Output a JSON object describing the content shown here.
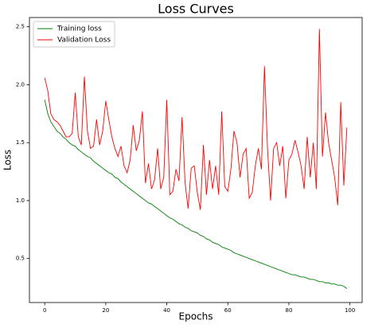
{
  "chart_data": {
    "type": "line",
    "title": "Loss Curves",
    "xlabel": "Epochs",
    "ylabel": "Loss",
    "x": [
      0,
      1,
      2,
      3,
      4,
      5,
      6,
      7,
      8,
      9,
      10,
      11,
      12,
      13,
      14,
      15,
      16,
      17,
      18,
      19,
      20,
      21,
      22,
      23,
      24,
      25,
      26,
      27,
      28,
      29,
      30,
      31,
      32,
      33,
      34,
      35,
      36,
      37,
      38,
      39,
      40,
      41,
      42,
      43,
      44,
      45,
      46,
      47,
      48,
      49,
      50,
      51,
      52,
      53,
      54,
      55,
      56,
      57,
      58,
      59,
      60,
      61,
      62,
      63,
      64,
      65,
      66,
      67,
      68,
      69,
      70,
      71,
      72,
      73,
      74,
      75,
      76,
      77,
      78,
      79,
      80,
      81,
      82,
      83,
      84,
      85,
      86,
      87,
      88,
      89,
      90,
      91,
      92,
      93,
      94,
      95,
      96,
      97,
      98,
      99
    ],
    "series": [
      {
        "name": "Training loss",
        "color": "#008000",
        "values": [
          1.87,
          1.75,
          1.68,
          1.64,
          1.6,
          1.58,
          1.55,
          1.53,
          1.5,
          1.48,
          1.47,
          1.44,
          1.42,
          1.4,
          1.38,
          1.37,
          1.34,
          1.32,
          1.3,
          1.28,
          1.26,
          1.24,
          1.23,
          1.2,
          1.19,
          1.16,
          1.14,
          1.12,
          1.1,
          1.08,
          1.06,
          1.04,
          1.02,
          1.0,
          0.98,
          0.97,
          0.95,
          0.93,
          0.91,
          0.89,
          0.87,
          0.85,
          0.84,
          0.82,
          0.8,
          0.79,
          0.77,
          0.76,
          0.74,
          0.73,
          0.72,
          0.7,
          0.69,
          0.67,
          0.66,
          0.64,
          0.63,
          0.62,
          0.6,
          0.59,
          0.58,
          0.57,
          0.55,
          0.54,
          0.53,
          0.52,
          0.51,
          0.5,
          0.49,
          0.48,
          0.47,
          0.46,
          0.45,
          0.44,
          0.43,
          0.42,
          0.41,
          0.4,
          0.39,
          0.38,
          0.37,
          0.36,
          0.36,
          0.35,
          0.34,
          0.34,
          0.33,
          0.32,
          0.32,
          0.31,
          0.3,
          0.3,
          0.29,
          0.29,
          0.28,
          0.28,
          0.27,
          0.27,
          0.26,
          0.24
        ]
      },
      {
        "name": "Validation Loss",
        "color": "#ff0000",
        "values": [
          2.06,
          1.95,
          1.75,
          1.7,
          1.68,
          1.65,
          1.6,
          1.55,
          1.55,
          1.58,
          1.93,
          1.55,
          1.48,
          2.07,
          1.6,
          1.45,
          1.47,
          1.7,
          1.48,
          1.6,
          1.86,
          1.7,
          1.55,
          1.45,
          1.38,
          1.47,
          1.3,
          1.24,
          1.35,
          1.65,
          1.43,
          1.52,
          1.77,
          1.15,
          1.32,
          1.1,
          1.18,
          1.45,
          1.1,
          1.2,
          1.87,
          1.05,
          1.08,
          1.27,
          1.17,
          1.72,
          1.15,
          0.93,
          1.28,
          1.3,
          1.07,
          0.92,
          1.48,
          1.05,
          1.35,
          1.1,
          1.3,
          1.05,
          1.77,
          1.12,
          1.08,
          1.27,
          1.6,
          1.5,
          1.2,
          1.4,
          1.45,
          1.02,
          1.07,
          1.3,
          1.45,
          1.27,
          2.16,
          1.45,
          1.0,
          1.45,
          1.5,
          1.3,
          1.47,
          1.02,
          1.35,
          1.4,
          1.52,
          1.42,
          1.3,
          1.1,
          1.55,
          1.2,
          1.5,
          1.1,
          2.48,
          1.38,
          1.76,
          1.5,
          1.35,
          1.2,
          0.96,
          1.85,
          1.13,
          1.63
        ]
      }
    ],
    "xlim": [
      -5,
      104
    ],
    "ylim": [
      0.12,
      2.58
    ],
    "xticks": [
      0,
      20,
      40,
      60,
      80,
      100
    ],
    "yticks": [
      0.5,
      {
        "value": 1,
        "label": "1.0"
      },
      1.5,
      {
        "value": 2,
        "label": "2.0"
      },
      2.5
    ],
    "legend": "upper left"
  }
}
